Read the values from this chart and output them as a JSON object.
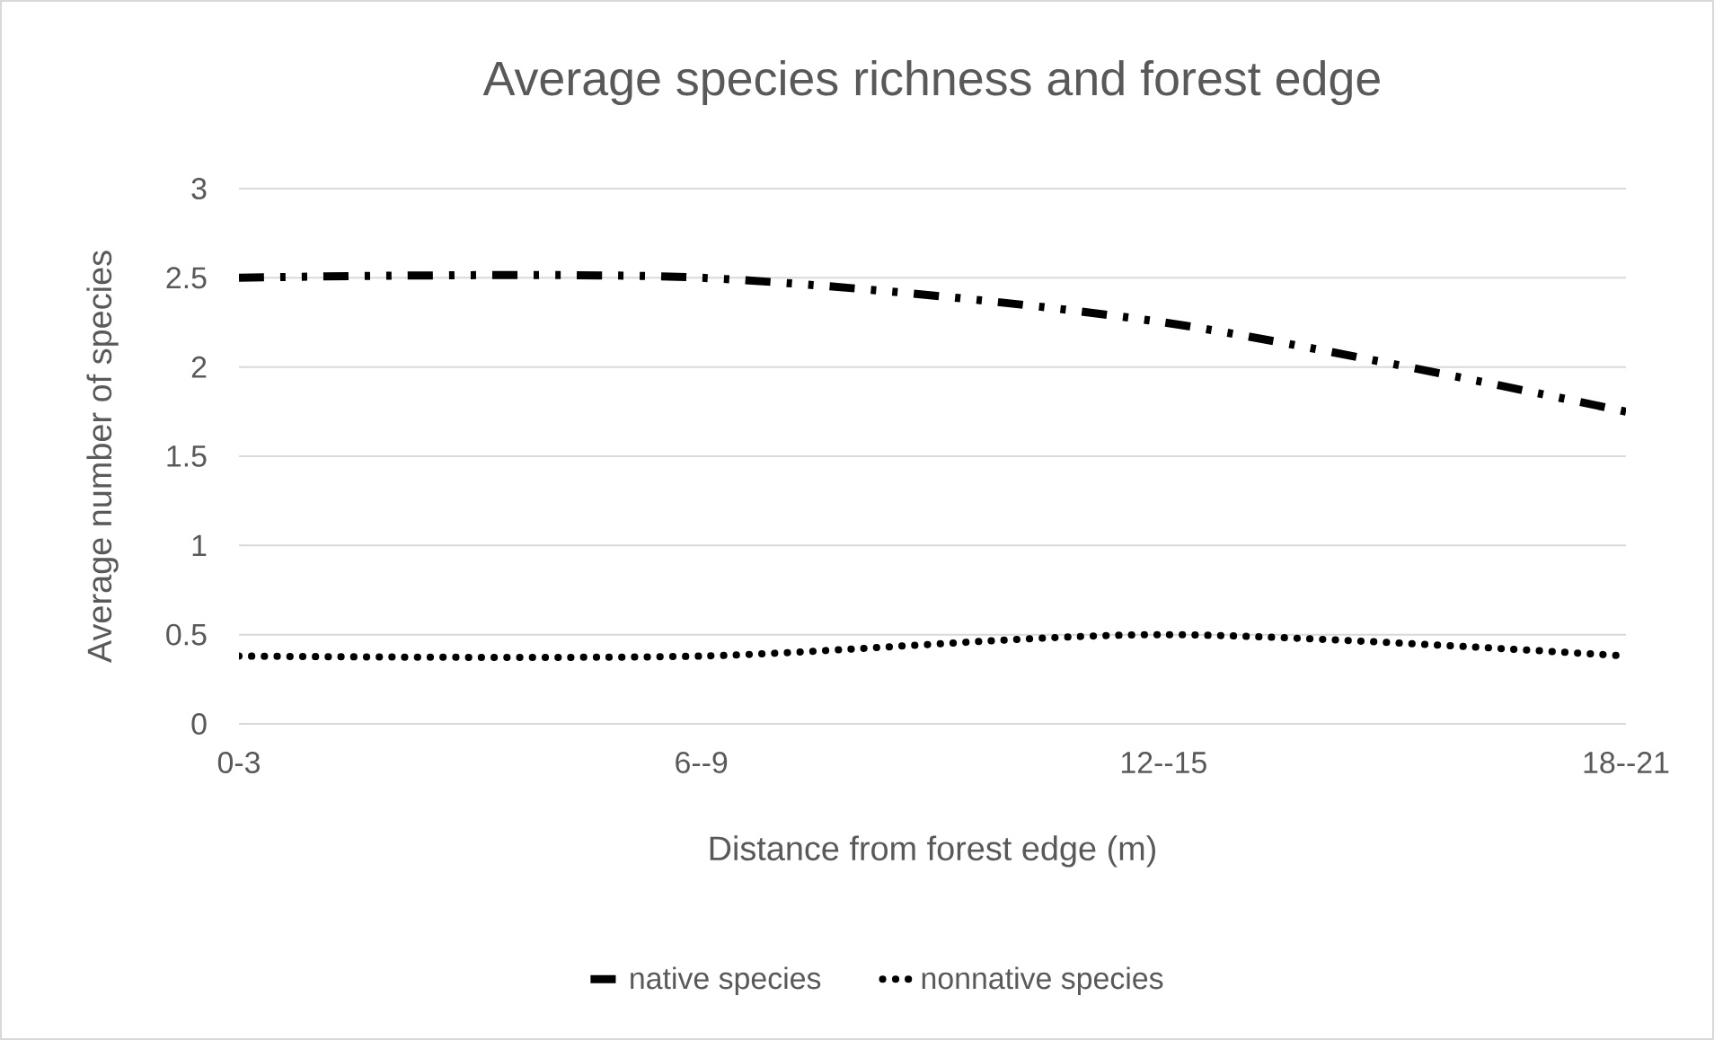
{
  "chart_data": {
    "type": "line",
    "title": "Average species richness and forest edge",
    "xlabel": "Distance from forest edge (m)",
    "ylabel": "Average number of species",
    "categories": [
      "0-3",
      "6--9",
      "12--15",
      "18--21"
    ],
    "series": [
      {
        "name": "native species",
        "color": "#000000",
        "line_style": "dashed",
        "values": [
          2.5,
          2.5,
          2.25,
          1.75
        ]
      },
      {
        "name": "nonnative species",
        "color": "#000000",
        "line_style": "dotted",
        "values": [
          0.38,
          0.38,
          0.5,
          0.38
        ]
      }
    ],
    "ylim": [
      0,
      3
    ],
    "yticks": [
      0,
      0.5,
      1,
      1.5,
      2,
      2.5,
      3
    ],
    "grid": "y",
    "legend": "bottom",
    "marker": "none"
  }
}
